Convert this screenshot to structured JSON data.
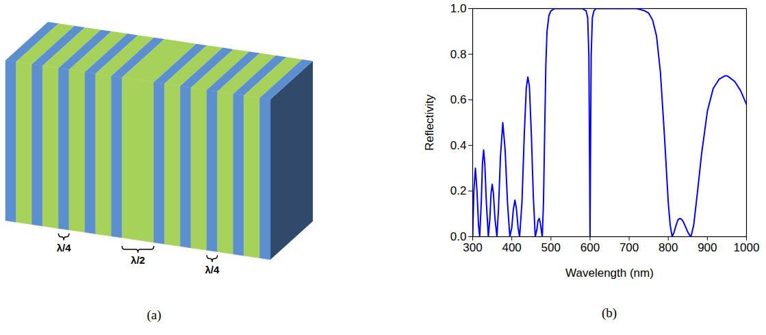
{
  "diagram": {
    "caption": "(a)",
    "labels": [
      "λ/4",
      "λ/2",
      "λ/4"
    ]
  },
  "chart_data": {
    "type": "line",
    "caption": "(b)",
    "xlabel": "Wavelength (nm)",
    "ylabel": "Reflectivity",
    "xlim": [
      300,
      1000
    ],
    "ylim": [
      0,
      1
    ],
    "xticks": [
      300,
      400,
      500,
      600,
      700,
      800,
      900,
      1000
    ],
    "yticks": [
      {
        "value": 0,
        "label": "0.0"
      },
      0.2,
      0.4,
      0.6,
      0.8,
      {
        "value": 1,
        "label": "1.0"
      }
    ],
    "grid": false,
    "color": "#0000ff",
    "x": [
      300,
      303,
      307,
      311,
      315,
      318,
      322,
      325,
      328,
      331,
      335,
      340,
      344,
      347,
      350,
      353,
      357,
      362,
      366,
      371,
      377,
      383,
      389,
      395,
      400,
      404,
      408,
      412,
      416,
      420,
      426,
      432,
      437,
      441,
      445,
      450,
      455,
      460,
      464,
      467,
      470,
      473,
      476,
      478,
      481,
      484,
      487,
      490,
      495,
      500,
      510,
      520,
      540,
      560,
      580,
      590,
      594,
      597,
      599,
      600,
      601,
      603,
      606,
      610,
      615,
      620,
      640,
      660,
      680,
      700,
      720,
      740,
      750,
      760,
      770,
      780,
      790,
      800,
      805,
      810,
      815,
      820,
      825,
      830,
      835,
      840,
      845,
      850,
      855,
      858,
      865,
      875,
      885,
      900,
      915,
      930,
      945,
      950,
      955,
      970,
      985,
      1000
    ],
    "values": [
      0,
      0.2,
      0.3,
      0.2,
      0.05,
      0,
      0.15,
      0.32,
      0.38,
      0.32,
      0.15,
      0,
      0.08,
      0.19,
      0.23,
      0.19,
      0.08,
      0,
      0.12,
      0.35,
      0.5,
      0.38,
      0.15,
      0,
      0.04,
      0.12,
      0.16,
      0.12,
      0.04,
      0,
      0.15,
      0.45,
      0.65,
      0.7,
      0.66,
      0.45,
      0.18,
      0,
      0.03,
      0.07,
      0.08,
      0.06,
      0.02,
      0,
      0.15,
      0.45,
      0.75,
      0.9,
      0.97,
      0.99,
      1,
      1,
      1,
      1,
      1,
      0.99,
      0.96,
      0.8,
      0.3,
      0,
      0.3,
      0.8,
      0.96,
      0.99,
      1,
      1,
      1,
      1,
      1,
      1,
      1,
      0.99,
      0.98,
      0.95,
      0.88,
      0.72,
      0.45,
      0.15,
      0.05,
      0,
      0.02,
      0.05,
      0.075,
      0.08,
      0.075,
      0.06,
      0.04,
      0.02,
      0.005,
      0,
      0.05,
      0.2,
      0.36,
      0.55,
      0.65,
      0.69,
      0.705,
      0.705,
      0.7,
      0.68,
      0.64,
      0.58
    ]
  }
}
